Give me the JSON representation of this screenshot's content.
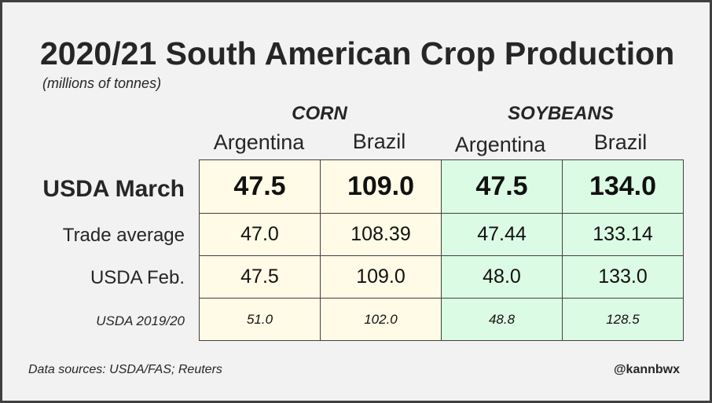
{
  "chart_data": {
    "type": "table",
    "title": "2020/21 South American Crop Production",
    "subtitle": "(millions of tonnes)",
    "column_groups": [
      {
        "name": "CORN",
        "columns": [
          "Argentina",
          "Brazil"
        ]
      },
      {
        "name": "SOYBEANS",
        "columns": [
          "Argentina",
          "Brazil"
        ]
      }
    ],
    "rows": [
      {
        "label": "USDA March",
        "values": [
          "47.5",
          "109.0",
          "47.5",
          "134.0"
        ]
      },
      {
        "label": "Trade average",
        "values": [
          "47.0",
          "108.39",
          "47.44",
          "133.14"
        ]
      },
      {
        "label": "USDA Feb.",
        "values": [
          "47.5",
          "109.0",
          "48.0",
          "133.0"
        ]
      },
      {
        "label": "USDA 2019/20",
        "values": [
          "51.0",
          "102.0",
          "48.8",
          "128.5"
        ]
      }
    ],
    "colors": {
      "corn_cell": "#fffbe6",
      "soybean_cell": "#dcfbe4",
      "background": "#f2f2f2"
    }
  },
  "footer": {
    "source": "Data sources: USDA/FAS; Reuters",
    "handle": "@kannbwx"
  }
}
